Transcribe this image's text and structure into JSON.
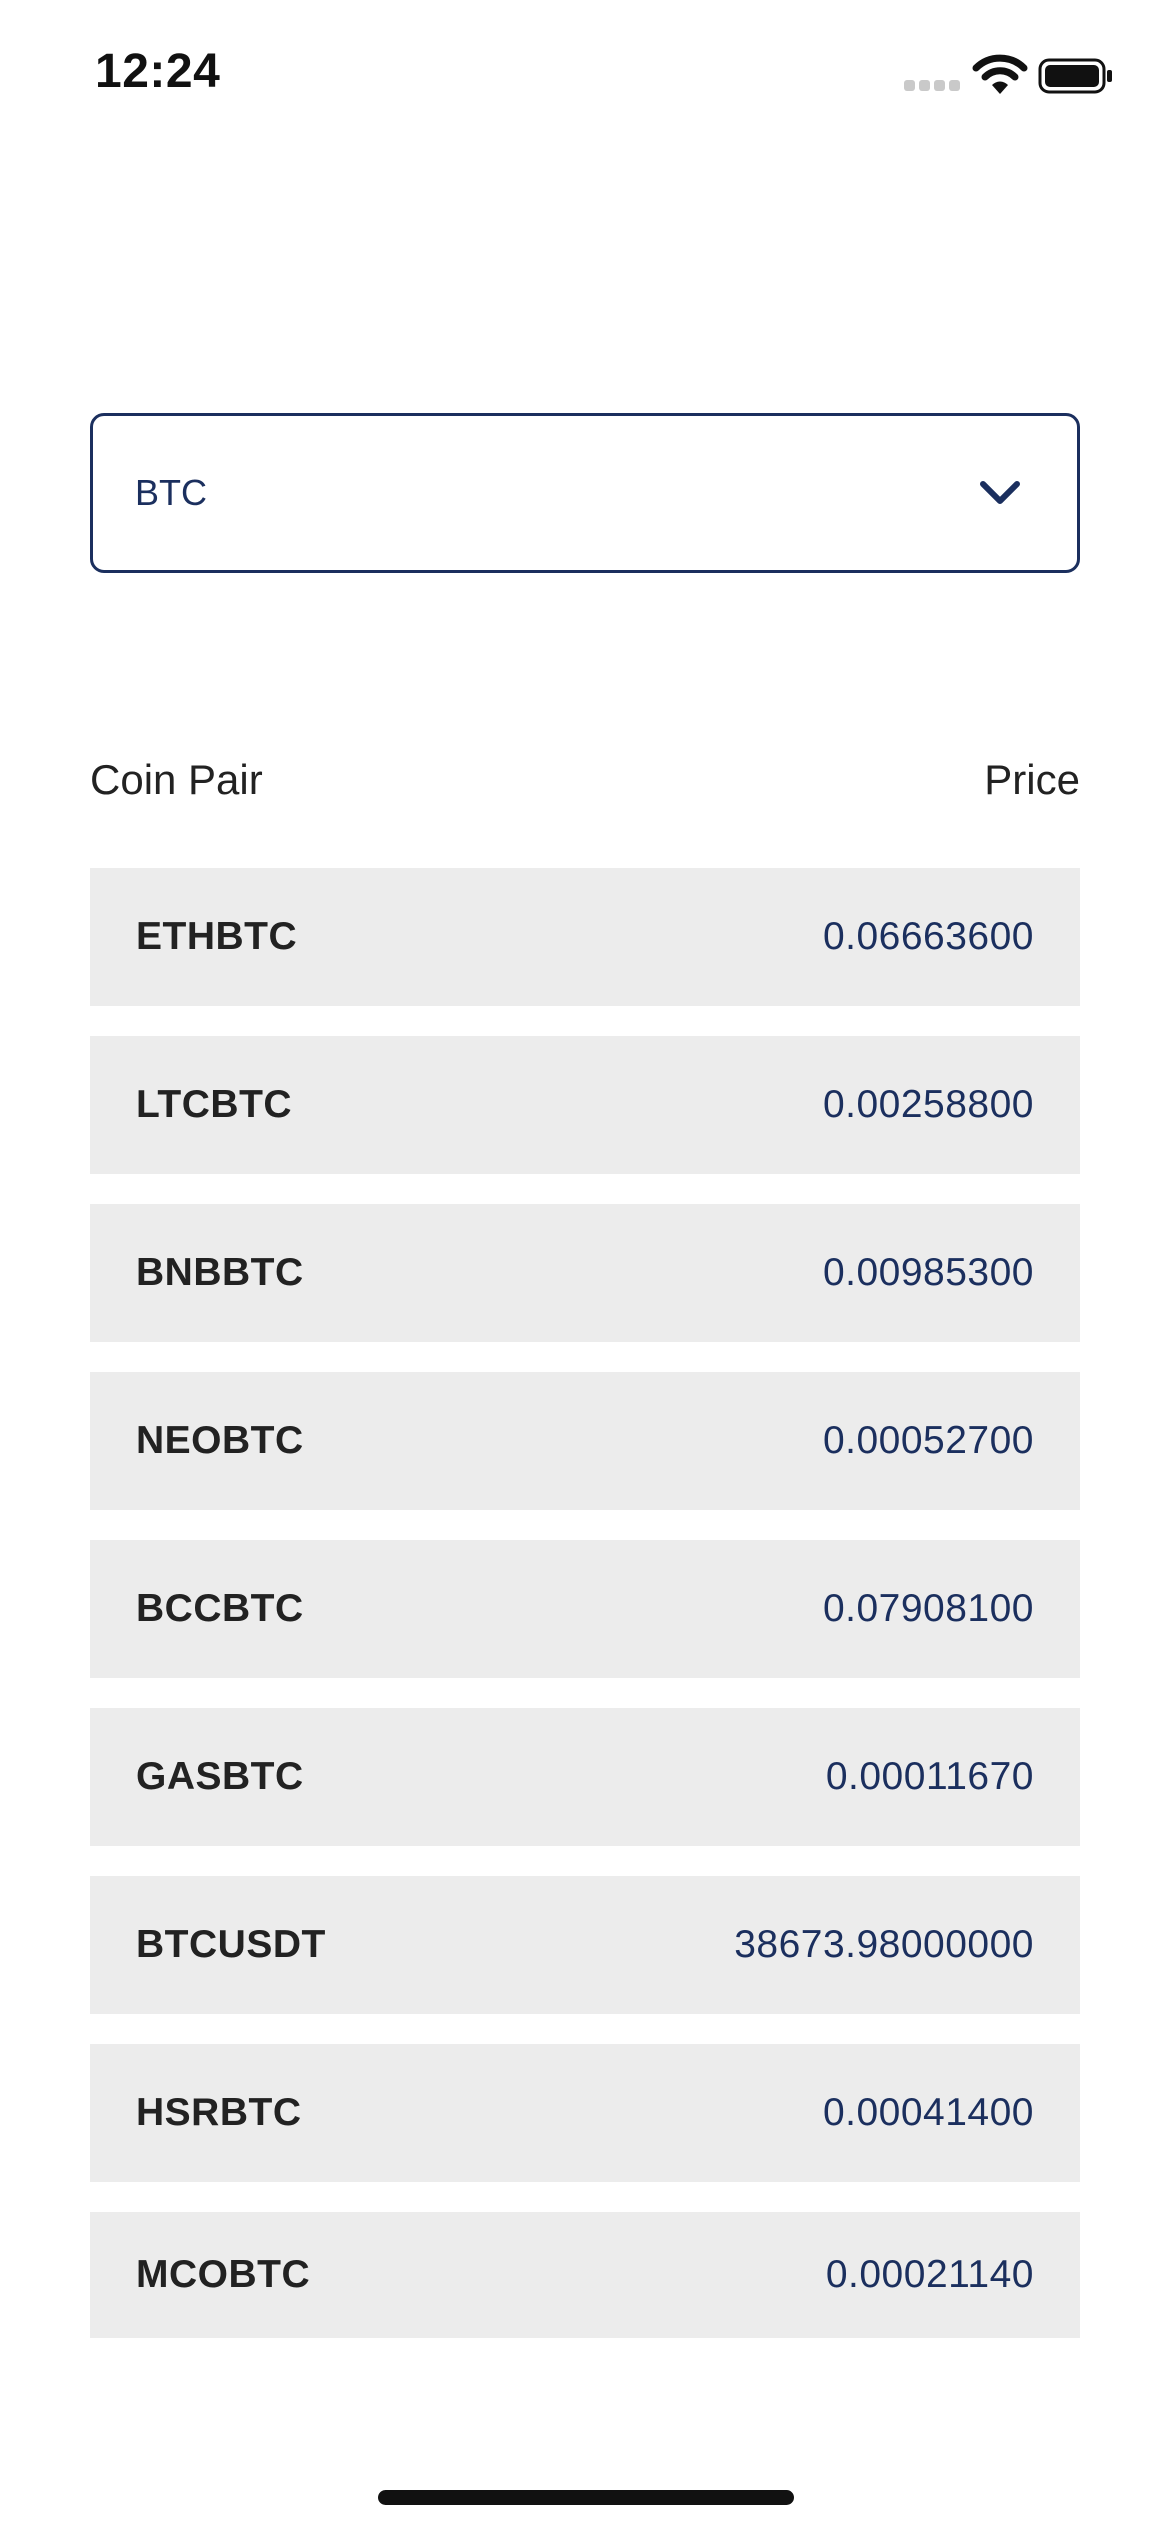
{
  "status_bar": {
    "time": "12:24",
    "icons": [
      "cellular-signal-icon",
      "wifi-icon",
      "battery-icon"
    ]
  },
  "selector": {
    "value": "BTC",
    "icon": "chevron-down-icon"
  },
  "table": {
    "headers": {
      "pair": "Coin Pair",
      "price": "Price"
    },
    "rows": [
      {
        "pair": "ETHBTC",
        "price": "0.06663600"
      },
      {
        "pair": "LTCBTC",
        "price": "0.00258800"
      },
      {
        "pair": "BNBBTC",
        "price": "0.00985300"
      },
      {
        "pair": "NEOBTC",
        "price": "0.00052700"
      },
      {
        "pair": "BCCBTC",
        "price": "0.07908100"
      },
      {
        "pair": "GASBTC",
        "price": "0.00011670"
      },
      {
        "pair": "BTCUSDT",
        "price": "38673.98000000"
      },
      {
        "pair": "HSRBTC",
        "price": "0.00041400"
      },
      {
        "pair": "MCOBTC",
        "price": "0.00021140"
      }
    ]
  },
  "colors": {
    "accent": "#1b2f5e",
    "row_background": "#ececec",
    "text": "#222222"
  }
}
